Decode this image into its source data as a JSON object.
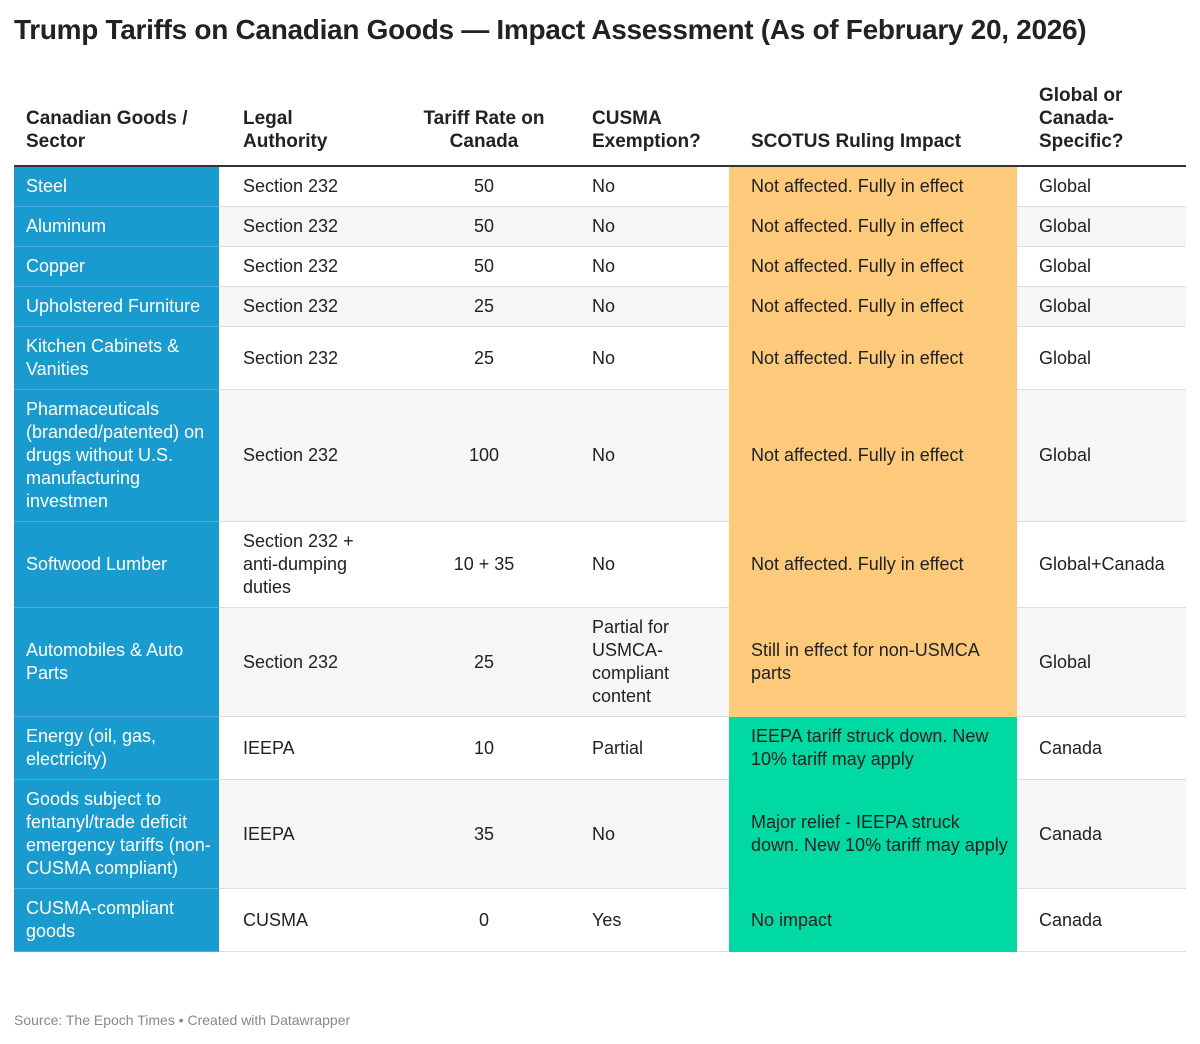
{
  "title": "Trump Tariffs on Canadian Goods — Impact Assessment (As of February 20, 2026)",
  "table": {
    "columns": [
      "Canadian Goods / Sector",
      "Legal Authority",
      "Tariff Rate on Canada",
      "CUSMA Exemption?",
      "SCOTUS Ruling Impact",
      "Global or Canada-Specific?"
    ],
    "rows": [
      [
        "Steel",
        "Section 232",
        50,
        "No",
        "Not affected. Fully in effect",
        "Global"
      ],
      [
        "Aluminum",
        "Section 232",
        50,
        "No",
        "Not affected. Fully in effect",
        "Global"
      ],
      [
        "Copper",
        "Section 232",
        50,
        "No",
        "Not affected. Fully in effect",
        "Global"
      ],
      [
        "Upholstered Furniture",
        "Section 232",
        25,
        "No",
        "Not affected. Fully in effect",
        "Global"
      ],
      [
        "Kitchen Cabinets & Vanities",
        "Section 232",
        25,
        "No",
        "Not affected. Fully in effect",
        "Global"
      ],
      [
        "Pharmaceuticals (branded/patented) on drugs without U.S. manufacturing investmen",
        "Section 232",
        100,
        "No",
        "Not affected. Fully in effect",
        "Global"
      ],
      [
        "Softwood Lumber",
        "Section 232 + anti-dumping duties",
        "10 + 35",
        "No",
        "Not affected. Fully in effect",
        "Global+Canada"
      ],
      [
        "Automobiles & Auto Parts",
        "Section 232",
        25,
        "Partial for USMCA-compliant content",
        "Still in effect for non-USMCA parts",
        "Global"
      ],
      [
        "Energy (oil, gas, electricity)",
        "IEEPA",
        10,
        "Partial",
        "IEEPA tariff struck down. New 10% tariff may apply",
        "Canada"
      ],
      [
        "Goods subject to fentanyl/trade deficit emergency tariffs (non-CUSMA compliant)",
        "IEEPA",
        35,
        "No",
        "Major relief - IEEPA struck down. New 10% tariff may apply",
        "Canada"
      ],
      [
        "CUSMA-compliant goods",
        "CUSMA",
        0,
        "Yes",
        "No impact",
        "Canada"
      ]
    ],
    "impact_colors": [
      "#fdc97a",
      "#fdc97a",
      "#fdc97a",
      "#fdc97a",
      "#fdc97a",
      "#fdc97a",
      "#fdc97a",
      "#fdc97a",
      "#00d9a2",
      "#00d9a2",
      "#00d9a2"
    ],
    "sector_color": "#1a9bd0"
  },
  "footer": "Source: The Epoch Times • Created with Datawrapper"
}
